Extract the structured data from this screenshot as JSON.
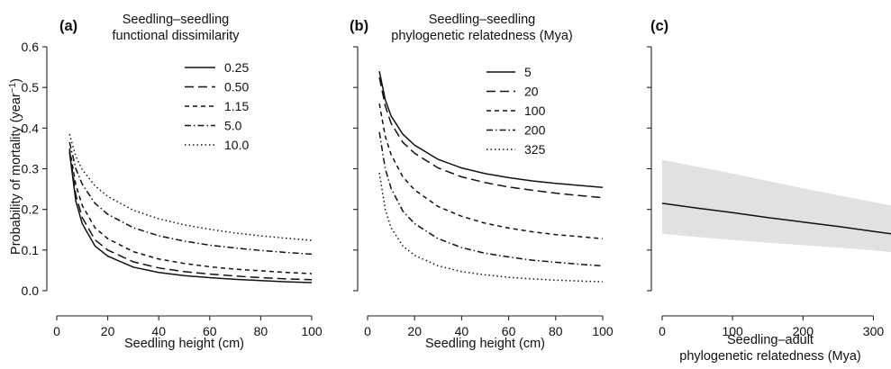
{
  "figure": {
    "ylabel_prefix": "Probability of mortality (year",
    "ylabel_sup": "−1",
    "ylabel_suffix": ")"
  },
  "chart_data": [
    {
      "type": "line",
      "panel": "(a)",
      "title": [
        "Seedling–seedling",
        "functional dissimilarity"
      ],
      "xlabel": [
        "Seedling height (cm)"
      ],
      "ylabel": "Probability of mortality (year−1)",
      "xlim": [
        0,
        100
      ],
      "ylim": [
        0,
        0.6
      ],
      "xticks": [
        0,
        20,
        40,
        60,
        80,
        100
      ],
      "yticks": [
        0.0,
        0.1,
        0.2,
        0.3,
        0.4,
        0.5,
        0.6
      ],
      "ytick_labels": [
        "0.0",
        "0.1",
        "0.2",
        "0.3",
        "0.4",
        "0.5",
        "0.6"
      ],
      "show_yticks": true,
      "legend_position": "top-right",
      "series": [
        {
          "name": "0.25",
          "dash": "solid",
          "x": [
            5,
            7.5,
            10,
            15,
            20,
            30,
            40,
            50,
            60,
            70,
            80,
            90,
            100
          ],
          "y": [
            0.34,
            0.22,
            0.165,
            0.11,
            0.085,
            0.058,
            0.045,
            0.037,
            0.032,
            0.028,
            0.025,
            0.022,
            0.02
          ]
        },
        {
          "name": "0.50",
          "dash": "dashed",
          "x": [
            5,
            7.5,
            10,
            15,
            20,
            30,
            40,
            50,
            60,
            70,
            80,
            90,
            100
          ],
          "y": [
            0.345,
            0.235,
            0.18,
            0.125,
            0.1,
            0.071,
            0.056,
            0.047,
            0.041,
            0.036,
            0.032,
            0.029,
            0.027
          ]
        },
        {
          "name": "1.15",
          "dash": "short-dashed",
          "x": [
            5,
            7.5,
            10,
            15,
            20,
            30,
            40,
            50,
            60,
            70,
            80,
            90,
            100
          ],
          "y": [
            0.35,
            0.26,
            0.21,
            0.155,
            0.128,
            0.096,
            0.078,
            0.067,
            0.059,
            0.053,
            0.049,
            0.045,
            0.042
          ]
        },
        {
          "name": "5.0",
          "dash": "dash-dot",
          "x": [
            5,
            7.5,
            10,
            15,
            20,
            30,
            40,
            50,
            60,
            70,
            80,
            90,
            100
          ],
          "y": [
            0.365,
            0.3,
            0.262,
            0.215,
            0.188,
            0.155,
            0.135,
            0.122,
            0.112,
            0.105,
            0.099,
            0.094,
            0.09
          ]
        },
        {
          "name": "10.0",
          "dash": "dotted",
          "x": [
            5,
            7.5,
            10,
            15,
            20,
            30,
            40,
            50,
            60,
            70,
            80,
            90,
            100
          ],
          "y": [
            0.385,
            0.33,
            0.298,
            0.258,
            0.232,
            0.198,
            0.177,
            0.162,
            0.151,
            0.142,
            0.135,
            0.129,
            0.124
          ]
        }
      ]
    },
    {
      "type": "line",
      "panel": "(b)",
      "title": [
        "Seedling–seedling",
        "phylogenetic relatedness (Mya)"
      ],
      "xlabel": [
        "Seedling height (cm)"
      ],
      "xlim": [
        0,
        100
      ],
      "ylim": [
        0,
        0.6
      ],
      "xticks": [
        0,
        20,
        40,
        60,
        80,
        100
      ],
      "yticks": [
        0.0,
        0.1,
        0.2,
        0.3,
        0.4,
        0.5,
        0.6
      ],
      "ytick_labels": [],
      "show_yticks": true,
      "legend_position": "top-right",
      "series": [
        {
          "name": "5",
          "dash": "solid",
          "x": [
            5,
            7.5,
            10,
            15,
            20,
            30,
            40,
            50,
            60,
            70,
            80,
            90,
            100
          ],
          "y": [
            0.54,
            0.47,
            0.43,
            0.385,
            0.358,
            0.323,
            0.302,
            0.288,
            0.278,
            0.27,
            0.264,
            0.259,
            0.254
          ]
        },
        {
          "name": "20",
          "dash": "dashed",
          "x": [
            5,
            7.5,
            10,
            15,
            20,
            30,
            40,
            50,
            60,
            70,
            80,
            90,
            100
          ],
          "y": [
            0.525,
            0.455,
            0.412,
            0.365,
            0.338,
            0.302,
            0.28,
            0.266,
            0.255,
            0.247,
            0.24,
            0.234,
            0.229
          ]
        },
        {
          "name": "100",
          "dash": "short-dashed",
          "x": [
            5,
            7.5,
            10,
            15,
            20,
            30,
            40,
            50,
            60,
            70,
            80,
            90,
            100
          ],
          "y": [
            0.46,
            0.38,
            0.335,
            0.28,
            0.248,
            0.207,
            0.183,
            0.166,
            0.154,
            0.145,
            0.138,
            0.133,
            0.128
          ]
        },
        {
          "name": "200",
          "dash": "dash-dot",
          "x": [
            5,
            7.5,
            10,
            15,
            20,
            30,
            40,
            50,
            60,
            70,
            80,
            90,
            100
          ],
          "y": [
            0.39,
            0.3,
            0.252,
            0.196,
            0.165,
            0.128,
            0.106,
            0.092,
            0.083,
            0.075,
            0.07,
            0.065,
            0.061
          ]
        },
        {
          "name": "325",
          "dash": "dotted",
          "x": [
            5,
            7.5,
            10,
            15,
            20,
            30,
            40,
            50,
            60,
            70,
            80,
            90,
            100
          ],
          "y": [
            0.29,
            0.2,
            0.155,
            0.11,
            0.087,
            0.061,
            0.047,
            0.039,
            0.033,
            0.029,
            0.026,
            0.024,
            0.022
          ]
        }
      ]
    },
    {
      "type": "line",
      "panel": "(c)",
      "title": [],
      "xlabel": [
        "Seedling–adult",
        "phylogenetic relatedness (Mya)"
      ],
      "xlim": [
        0,
        325
      ],
      "ylim": [
        0,
        0.6
      ],
      "xticks": [
        0,
        100,
        200,
        300
      ],
      "yticks": [
        0.0,
        0.1,
        0.2,
        0.3,
        0.4,
        0.5,
        0.6
      ],
      "ytick_labels": [],
      "show_yticks": true,
      "legend_position": "none",
      "series": [
        {
          "name": "",
          "dash": "solid",
          "x": [
            0,
            50,
            100,
            150,
            200,
            250,
            300,
            325
          ],
          "y": [
            0.215,
            0.203,
            0.192,
            0.18,
            0.169,
            0.158,
            0.146,
            0.14
          ]
        }
      ],
      "band": {
        "x": [
          0,
          50,
          100,
          150,
          200,
          250,
          300,
          325
        ],
        "lower": [
          0.14,
          0.132,
          0.125,
          0.118,
          0.112,
          0.106,
          0.099,
          0.095
        ],
        "upper": [
          0.322,
          0.305,
          0.288,
          0.27,
          0.252,
          0.235,
          0.218,
          0.21
        ]
      },
      "band_color": "#e1e1e1"
    }
  ]
}
